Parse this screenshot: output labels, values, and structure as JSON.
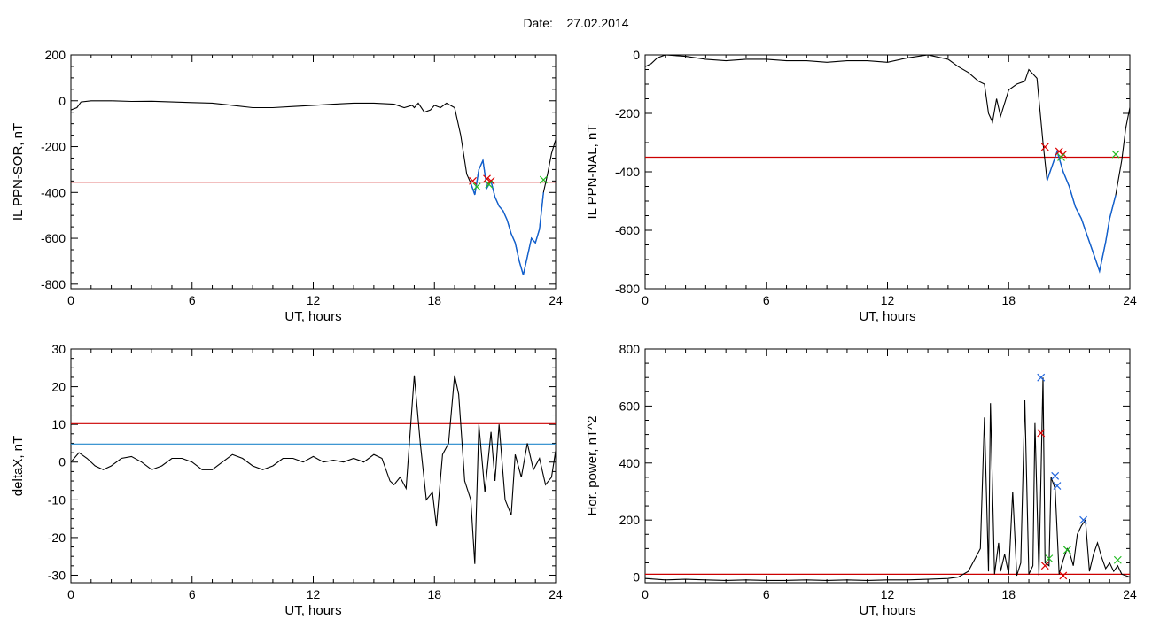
{
  "header": {
    "date_label": "Date:",
    "date_value": "27.02.2014"
  },
  "colors": {
    "data_line": "#000000",
    "blue_trace": "#1060d0",
    "red_threshold": "#cc0000",
    "blue_threshold": "#2288cc",
    "red_marker": "#dd0000",
    "green_marker": "#22bb22",
    "blue_marker": "#2266dd"
  },
  "chart_data": [
    {
      "id": "il-sor",
      "type": "line",
      "xlabel": "UT, hours",
      "ylabel": "IL PPN-SOR, nT",
      "xlim": [
        0,
        24
      ],
      "ylim": [
        -820,
        200
      ],
      "xticks": [
        0,
        6,
        12,
        18,
        24
      ],
      "yticks": [
        200,
        0,
        -200,
        -400,
        -600,
        -800
      ],
      "threshold_red": -355,
      "series": [
        {
          "color": "black",
          "x": [
            0,
            0.3,
            0.5,
            1,
            2,
            3,
            4,
            5,
            6,
            7,
            8,
            9,
            10,
            11,
            12,
            13,
            14,
            15,
            16,
            16.5,
            16.9,
            17,
            17.2,
            17.5,
            17.8,
            18,
            18.3,
            18.6,
            19,
            19.3,
            19.6,
            19.8,
            20,
            20.2,
            20.4,
            20.6,
            20.8,
            21,
            21.2,
            21.4,
            21.6,
            21.8,
            22,
            22.2,
            22.4,
            22.6,
            22.8,
            23,
            23.2,
            23.4,
            23.6,
            23.8,
            24
          ],
          "y": [
            -40,
            -30,
            -5,
            0,
            0,
            -3,
            -2,
            -5,
            -8,
            -10,
            -20,
            -30,
            -30,
            -25,
            -20,
            -15,
            -10,
            -10,
            -15,
            -30,
            -20,
            -30,
            -10,
            -50,
            -40,
            -20,
            -30,
            -10,
            -30,
            -150,
            -320,
            -360,
            -410,
            -300,
            -260,
            -380,
            -350,
            -420,
            -460,
            -480,
            -520,
            -580,
            -620,
            -700,
            -760,
            -680,
            -600,
            -620,
            -560,
            -400,
            -320,
            -230,
            -170
          ]
        }
      ],
      "blue_segment": {
        "x_from": 19.8,
        "x_to": 23.4
      },
      "markers": [
        {
          "x": 19.9,
          "y": -350,
          "color": "red"
        },
        {
          "x": 20.6,
          "y": -340,
          "color": "red"
        },
        {
          "x": 20.8,
          "y": -350,
          "color": "red"
        },
        {
          "x": 20.1,
          "y": -375,
          "color": "green"
        },
        {
          "x": 20.7,
          "y": -365,
          "color": "green"
        },
        {
          "x": 23.4,
          "y": -345,
          "color": "green"
        }
      ]
    },
    {
      "id": "il-nal",
      "type": "line",
      "xlabel": "UT, hours",
      "ylabel": "IL PPN-NAL, nT",
      "xlim": [
        0,
        24
      ],
      "ylim": [
        -800,
        0
      ],
      "xticks": [
        0,
        6,
        12,
        18,
        24
      ],
      "yticks": [
        0,
        -200,
        -400,
        -600,
        -800
      ],
      "threshold_red": -350,
      "series": [
        {
          "color": "black",
          "x": [
            0,
            0.3,
            0.6,
            1,
            2,
            3,
            4,
            5,
            6,
            7,
            8,
            9,
            10,
            11,
            12,
            13,
            14,
            15,
            15.5,
            16,
            16.5,
            16.8,
            17,
            17.2,
            17.4,
            17.6,
            18,
            18.4,
            18.8,
            19,
            19.4,
            19.7,
            19.9,
            20.1,
            20.4,
            20.7,
            21,
            21.3,
            21.6,
            21.9,
            22.2,
            22.5,
            22.8,
            23,
            23.3,
            23.6,
            23.8,
            24
          ],
          "y": [
            -40,
            -30,
            -10,
            0,
            -5,
            -15,
            -20,
            -15,
            -15,
            -20,
            -20,
            -25,
            -20,
            -20,
            -25,
            -10,
            0,
            -15,
            -40,
            -60,
            -90,
            -100,
            -200,
            -230,
            -150,
            -210,
            -120,
            -100,
            -90,
            -50,
            -80,
            -300,
            -430,
            -390,
            -330,
            -400,
            -450,
            -520,
            -560,
            -620,
            -680,
            -740,
            -640,
            -560,
            -480,
            -360,
            -250,
            -180
          ]
        }
      ],
      "blue_segment": {
        "x_from": 19.8,
        "x_to": 23.3
      },
      "markers": [
        {
          "x": 19.8,
          "y": -315,
          "color": "red"
        },
        {
          "x": 20.5,
          "y": -330,
          "color": "red"
        },
        {
          "x": 20.7,
          "y": -340,
          "color": "red"
        },
        {
          "x": 20.6,
          "y": -350,
          "color": "green"
        },
        {
          "x": 23.3,
          "y": -340,
          "color": "green"
        }
      ]
    },
    {
      "id": "deltax",
      "type": "line",
      "xlabel": "UT, hours",
      "ylabel": "deltaX, nT",
      "xlim": [
        0,
        24
      ],
      "ylim": [
        -32,
        30
      ],
      "xticks": [
        0,
        6,
        12,
        18,
        24
      ],
      "yticks": [
        30,
        20,
        10,
        0,
        -10,
        -20,
        -30
      ],
      "threshold_red": 10.2,
      "threshold_blue": 4.8,
      "series": [
        {
          "color": "black",
          "x": [
            0,
            0.4,
            0.8,
            1.2,
            1.6,
            2,
            2.5,
            3,
            3.5,
            4,
            4.5,
            5,
            5.5,
            6,
            6.5,
            7,
            7.5,
            8,
            8.5,
            9,
            9.5,
            10,
            10.5,
            11,
            11.5,
            12,
            12.5,
            13,
            13.5,
            14,
            14.5,
            15,
            15.4,
            15.8,
            16,
            16.3,
            16.6,
            16.8,
            17,
            17.3,
            17.6,
            17.9,
            18.1,
            18.4,
            18.7,
            19,
            19.2,
            19.5,
            19.8,
            20,
            20.2,
            20.5,
            20.8,
            21,
            21.2,
            21.5,
            21.8,
            22,
            22.3,
            22.6,
            22.9,
            23.2,
            23.5,
            23.8,
            24
          ],
          "y": [
            0,
            2.5,
            1,
            -1,
            -2,
            -1,
            1,
            1.5,
            0,
            -2,
            -1,
            1,
            1,
            0,
            -2,
            -2,
            0,
            2,
            1,
            -1,
            -2,
            -1,
            1,
            1,
            0,
            1.5,
            0,
            0.5,
            0,
            1,
            0,
            2,
            1,
            -5,
            -6,
            -4,
            -7,
            8,
            23,
            5,
            -10,
            -8,
            -17,
            2,
            5,
            23,
            18,
            -5,
            -10,
            -27,
            10,
            -8,
            8,
            -5,
            10,
            -10,
            -14,
            2,
            -4,
            5,
            -2,
            1,
            -6,
            -4,
            3
          ]
        }
      ],
      "markers": []
    },
    {
      "id": "hor-power",
      "type": "line",
      "xlabel": "UT, hours",
      "ylabel": "Hor. power, nT^2",
      "xlim": [
        0,
        24
      ],
      "ylim": [
        -20,
        800
      ],
      "xticks": [
        0,
        6,
        12,
        18,
        24
      ],
      "yticks": [
        800,
        600,
        400,
        200,
        0
      ],
      "threshold_red": 10,
      "series": [
        {
          "color": "black",
          "x": [
            0,
            1,
            2,
            3,
            4,
            5,
            6,
            7,
            8,
            9,
            10,
            11,
            12,
            13,
            14,
            15,
            15.5,
            16,
            16.3,
            16.6,
            16.8,
            17,
            17.1,
            17.3,
            17.5,
            17.6,
            17.8,
            18,
            18.2,
            18.4,
            18.6,
            18.8,
            19,
            19.2,
            19.3,
            19.5,
            19.7,
            19.8,
            20,
            20.1,
            20.3,
            20.5,
            20.7,
            20.9,
            21,
            21.2,
            21.4,
            21.6,
            21.8,
            22,
            22.2,
            22.4,
            22.6,
            22.8,
            23,
            23.2,
            23.4,
            23.6,
            24
          ],
          "y": [
            -5,
            -10,
            -8,
            -10,
            -12,
            -10,
            -12,
            -12,
            -10,
            -12,
            -10,
            -12,
            -10,
            -10,
            -8,
            -5,
            0,
            20,
            60,
            100,
            560,
            20,
            610,
            10,
            120,
            20,
            80,
            10,
            300,
            5,
            50,
            620,
            10,
            40,
            540,
            5,
            700,
            50,
            40,
            350,
            310,
            10,
            60,
            100,
            90,
            40,
            150,
            180,
            200,
            20,
            80,
            120,
            70,
            30,
            50,
            20,
            40,
            10,
            0
          ]
        }
      ],
      "markers": [
        {
          "x": 19.6,
          "y": 505,
          "color": "red"
        },
        {
          "x": 19.8,
          "y": 40,
          "color": "red"
        },
        {
          "x": 20.7,
          "y": 5,
          "color": "red"
        },
        {
          "x": 19.6,
          "y": 700,
          "color": "blue"
        },
        {
          "x": 20.3,
          "y": 355,
          "color": "blue"
        },
        {
          "x": 20.4,
          "y": 320,
          "color": "blue"
        },
        {
          "x": 21.7,
          "y": 200,
          "color": "blue"
        },
        {
          "x": 20.0,
          "y": 65,
          "color": "green"
        },
        {
          "x": 20.9,
          "y": 95,
          "color": "green"
        },
        {
          "x": 23.4,
          "y": 60,
          "color": "green"
        }
      ]
    }
  ]
}
